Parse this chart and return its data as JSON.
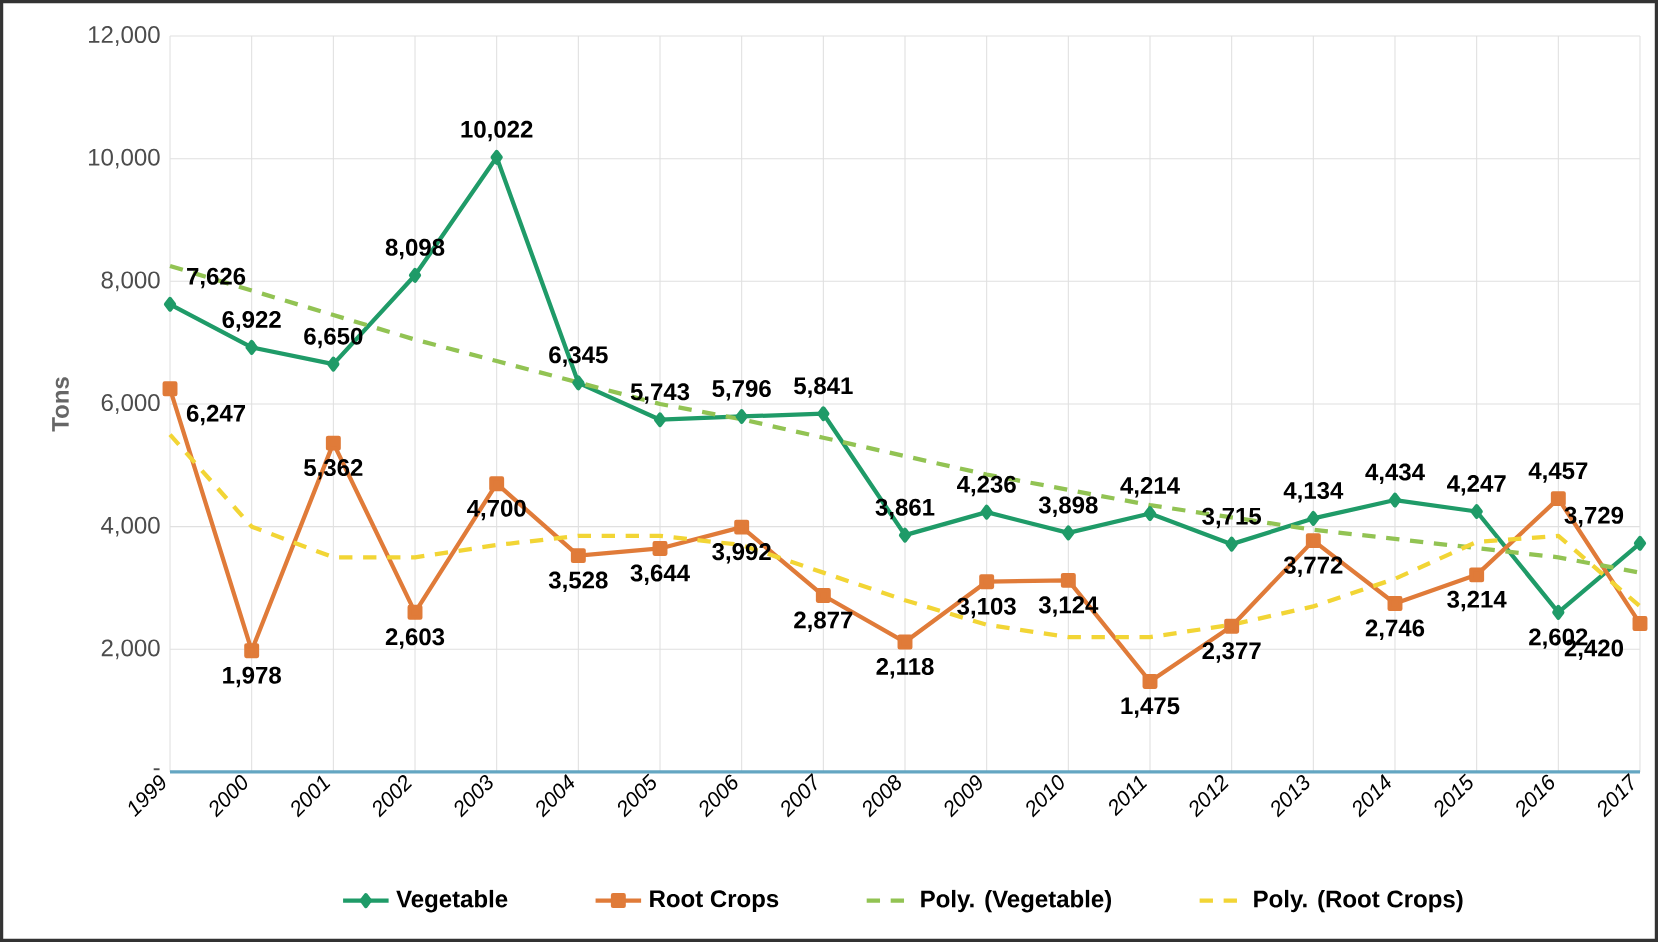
{
  "chart_data": {
    "type": "line",
    "ylabel": "Tons",
    "categories": [
      "1999",
      "2000",
      "2001",
      "2002",
      "2003",
      "2004",
      "2005",
      "2006",
      "2007",
      "2008",
      "2009",
      "2010",
      "2011",
      "2012",
      "2013",
      "2014",
      "2015",
      "2016",
      "2017"
    ],
    "ylim": [
      0,
      12000
    ],
    "yticks": [
      {
        "value": 0,
        "label": "-"
      },
      {
        "value": 2000,
        "label": "2,000"
      },
      {
        "value": 4000,
        "label": "4,000"
      },
      {
        "value": 6000,
        "label": "6,000"
      },
      {
        "value": 8000,
        "label": "8,000"
      },
      {
        "value": 10000,
        "label": "10,000"
      },
      {
        "value": 12000,
        "label": "12,000"
      }
    ],
    "grid": true,
    "legend": "bottom",
    "series": [
      {
        "name": "Vegetable",
        "color": "#1f9b68",
        "marker": "diamond",
        "line_style": "solid",
        "values": [
          7626,
          6922,
          6650,
          8098,
          10022,
          6345,
          5743,
          5796,
          5841,
          3861,
          4236,
          3898,
          4214,
          3715,
          4134,
          4434,
          4247,
          2602,
          3729
        ],
        "value_labels": [
          "7,626",
          "6,922",
          "6,650",
          "8,098",
          "10,022",
          "6,345",
          "5,743",
          "5,796",
          "5,841",
          "3,861",
          "4,236",
          "3,898",
          "4,214",
          "3,715",
          "4,134",
          "4,434",
          "4,247",
          "2,602",
          "3,729"
        ]
      },
      {
        "name": "Root Crops",
        "color": "#e07b39",
        "marker": "square",
        "line_style": "solid",
        "values": [
          6247,
          1978,
          5362,
          2603,
          4700,
          3528,
          3644,
          3992,
          2877,
          2118,
          3103,
          3124,
          1475,
          2377,
          3772,
          2746,
          3214,
          4457,
          2420
        ],
        "value_labels": [
          "6,247",
          "1,978",
          "5,362",
          "2,603",
          "4,700",
          "3,528",
          "3,644",
          "3,992",
          "2,877",
          "2,118",
          "3,103",
          "3,124",
          "1,475",
          "2,377",
          "3,772",
          "2,746",
          "3,214",
          "4,457",
          "2,420"
        ]
      },
      {
        "name": "Poly. (Vegetable)",
        "color": "#92c353",
        "marker": "none",
        "line_style": "dashed",
        "values": [
          8250,
          7850,
          7450,
          7050,
          6700,
          6350,
          6000,
          5750,
          5450,
          5150,
          4850,
          4600,
          4350,
          4150,
          3950,
          3800,
          3650,
          3500,
          3250
        ]
      },
      {
        "name": "Poly. (Root Crops)",
        "color": "#f2d535",
        "marker": "none",
        "line_style": "dashed",
        "values": [
          5500,
          4000,
          3500,
          3500,
          3700,
          3850,
          3850,
          3700,
          3250,
          2800,
          2400,
          2200,
          2200,
          2400,
          2700,
          3150,
          3750,
          3850,
          2700
        ]
      }
    ]
  }
}
